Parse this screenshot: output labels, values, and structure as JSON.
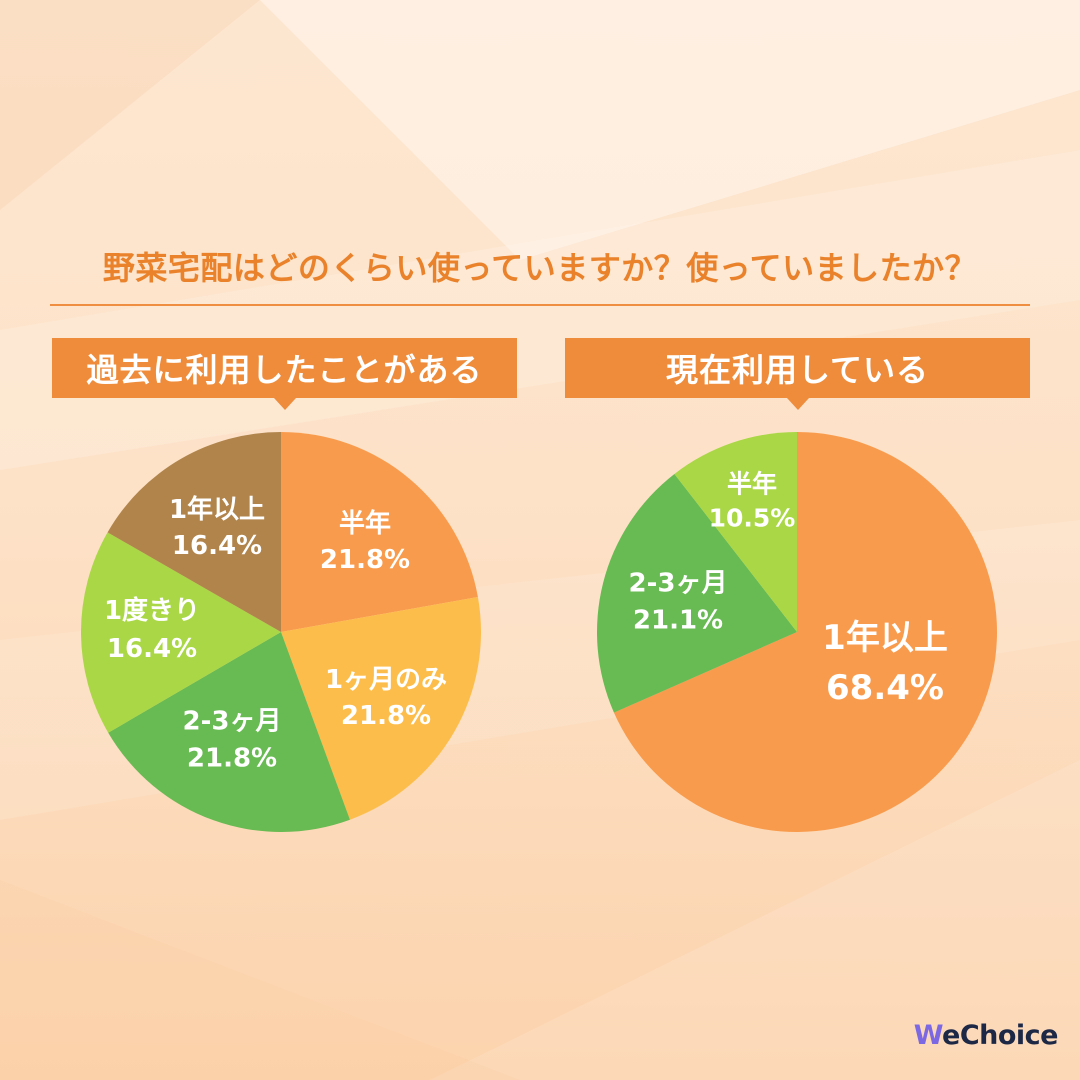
{
  "title": "野菜宅配はどのくらい使っていますか？使っていましたか？",
  "logo": {
    "text": "WeChoice"
  },
  "colors": {
    "title": "#e9822a",
    "divider": "#ef8e40",
    "label_box": "#ef8c3b",
    "label_text": "#ffffff",
    "slice_label_text": "#ffffff",
    "logo_text": "#1d2847",
    "logo_accent": "#7d68e3",
    "background_top": "#fde6d0",
    "background_bottom": "#fcd3ad"
  },
  "chart_data": [
    {
      "type": "pie",
      "title": "過去に利用したことがある",
      "unit": "%",
      "start": "top",
      "direction": "clockwise",
      "categories": [
        "半年",
        "1ヶ月のみ",
        "2-3ヶ月",
        "1度きり",
        "1年以上"
      ],
      "values": [
        21.8,
        21.8,
        21.8,
        16.4,
        16.4
      ],
      "colors": [
        "#f99b4c",
        "#fdbd4b",
        "#68ba52",
        "#a9d745",
        "#b1844b"
      ]
    },
    {
      "type": "pie",
      "title": "現在利用している",
      "unit": "%",
      "start": "top",
      "direction": "clockwise",
      "categories": [
        "1年以上",
        "2-3ヶ月",
        "半年"
      ],
      "values": [
        68.4,
        21.1,
        10.5
      ],
      "colors": [
        "#f99b4c",
        "#68ba52",
        "#a9d745"
      ]
    }
  ]
}
